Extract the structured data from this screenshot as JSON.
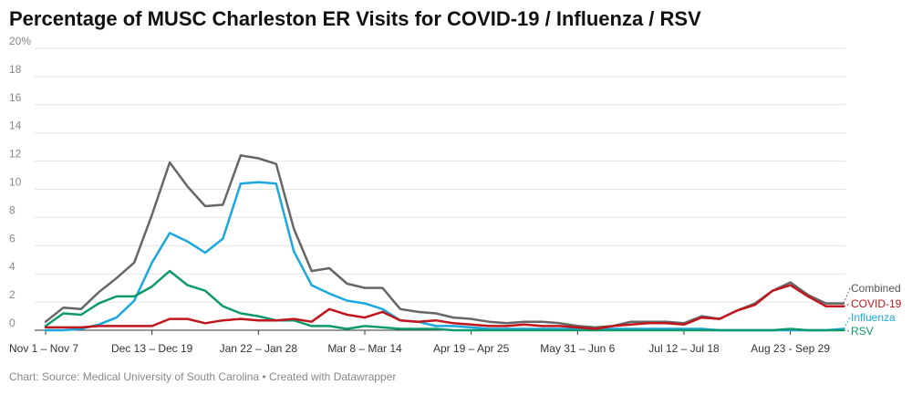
{
  "chart_data": {
    "type": "line",
    "title": "Percentage of MUSC Charleston ER Visits for COVID-19 / Influenza / RSV",
    "xlabel": "",
    "ylabel": "",
    "ylim": [
      0,
      20
    ],
    "y_ticks": [
      {
        "value": 0,
        "label": "0"
      },
      {
        "value": 2,
        "label": "2"
      },
      {
        "value": 4,
        "label": "4"
      },
      {
        "value": 6,
        "label": "6"
      },
      {
        "value": 8,
        "label": "8"
      },
      {
        "value": 10,
        "label": "10"
      },
      {
        "value": 12,
        "label": "12"
      },
      {
        "value": 14,
        "label": "14"
      },
      {
        "value": 16,
        "label": "16"
      },
      {
        "value": 18,
        "label": "18"
      },
      {
        "value": 20,
        "label": "20%"
      }
    ],
    "x_ticks": [
      {
        "index": 0,
        "label": "Nov 1 – Nov 7"
      },
      {
        "index": 6,
        "label": "Dec 13 – Dec 19"
      },
      {
        "index": 12,
        "label": "Jan 22 – Jan 28"
      },
      {
        "index": 18,
        "label": "Mar 8 – Mar 14"
      },
      {
        "index": 24,
        "label": "Apr 19 – Apr 25"
      },
      {
        "index": 30,
        "label": "May 31 – Jun 6"
      },
      {
        "index": 36,
        "label": "Jul 12 – Jul 18"
      },
      {
        "index": 42,
        "label": "Aug 23 - Sep 29"
      }
    ],
    "num_points": 46,
    "series": [
      {
        "name": "Combined",
        "color": "#666666",
        "values": [
          0.6,
          1.6,
          1.5,
          2.7,
          3.7,
          4.8,
          8.2,
          11.9,
          10.2,
          8.8,
          8.9,
          12.4,
          12.2,
          11.8,
          7.2,
          4.2,
          4.4,
          3.3,
          3.0,
          3.0,
          1.5,
          1.3,
          1.2,
          0.9,
          0.8,
          0.6,
          0.5,
          0.6,
          0.6,
          0.5,
          0.3,
          0.2,
          0.3,
          0.6,
          0.6,
          0.6,
          0.5,
          1.0,
          0.8,
          1.4,
          1.9,
          2.8,
          3.4,
          2.5,
          1.9,
          1.9
        ]
      },
      {
        "name": "COVID-19",
        "color": "#c0161c",
        "values": [
          0.2,
          0.2,
          0.2,
          0.3,
          0.3,
          0.3,
          0.3,
          0.8,
          0.8,
          0.5,
          0.7,
          0.8,
          0.7,
          0.7,
          0.8,
          0.6,
          1.5,
          1.1,
          0.9,
          1.3,
          0.7,
          0.6,
          0.7,
          0.5,
          0.4,
          0.3,
          0.3,
          0.4,
          0.3,
          0.3,
          0.2,
          0.1,
          0.3,
          0.4,
          0.5,
          0.5,
          0.4,
          0.9,
          0.8,
          1.4,
          1.8,
          2.8,
          3.2,
          2.4,
          1.7,
          1.7
        ]
      },
      {
        "name": "Influenza",
        "color": "#1ba7e0",
        "values": [
          0.0,
          0.0,
          0.1,
          0.4,
          0.9,
          2.1,
          4.8,
          6.9,
          6.3,
          5.5,
          6.5,
          10.4,
          10.5,
          10.4,
          5.6,
          3.2,
          2.6,
          2.1,
          1.9,
          1.5,
          0.7,
          0.6,
          0.3,
          0.3,
          0.2,
          0.1,
          0.1,
          0.1,
          0.1,
          0.1,
          0.1,
          0.1,
          0.1,
          0.1,
          0.1,
          0.1,
          0.1,
          0.1,
          0.0,
          0.0,
          0.0,
          0.0,
          0.0,
          0.0,
          0.0,
          0.1
        ]
      },
      {
        "name": "RSV",
        "color": "#0f9a6b",
        "values": [
          0.3,
          1.2,
          1.1,
          1.9,
          2.4,
          2.4,
          3.1,
          4.2,
          3.2,
          2.8,
          1.7,
          1.2,
          1.0,
          0.7,
          0.7,
          0.3,
          0.3,
          0.1,
          0.3,
          0.2,
          0.1,
          0.1,
          0.1,
          0.0,
          0.0,
          0.0,
          0.0,
          0.0,
          0.0,
          0.0,
          0.0,
          0.0,
          0.0,
          0.0,
          0.0,
          0.0,
          0.0,
          0.0,
          0.0,
          0.0,
          0.0,
          0.0,
          0.1,
          0.0,
          0.0,
          0.0
        ]
      }
    ],
    "annotations": [
      {
        "series": "Combined",
        "text": "Combined"
      },
      {
        "series": "COVID-19",
        "text": "COVID-19"
      },
      {
        "series": "Influenza",
        "text": "Influenza"
      },
      {
        "series": "RSV",
        "text": "RSV"
      }
    ],
    "legend": "direct-labels-right",
    "grid": true
  },
  "footer": "Chart: Source: Medical University of South Carolina • Created with Datawrapper"
}
